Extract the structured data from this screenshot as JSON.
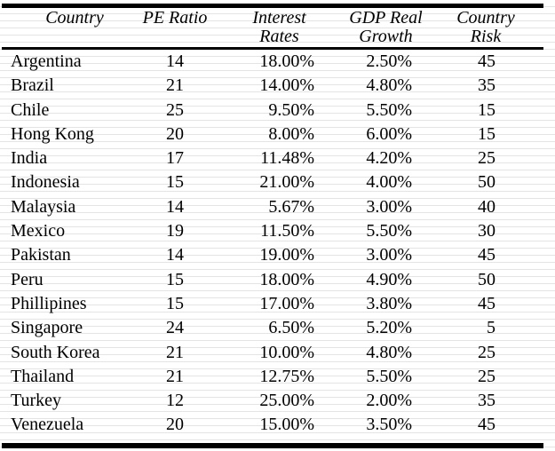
{
  "chart_data": {
    "type": "table",
    "title": "",
    "columns": [
      "Country",
      "PE Ratio",
      "Interest Rates",
      "GDP Real Growth",
      "Country Risk"
    ],
    "header_lines": [
      [
        "Country"
      ],
      [
        "PE Ratio"
      ],
      [
        "Interest",
        "Rates"
      ],
      [
        "GDP Real",
        "Growth"
      ],
      [
        "Country",
        "Risk"
      ]
    ],
    "rows": [
      [
        "Argentina",
        "14",
        "18.00%",
        "2.50%",
        "45"
      ],
      [
        "Brazil",
        "21",
        "14.00%",
        "4.80%",
        "35"
      ],
      [
        "Chile",
        "25",
        "9.50%",
        "5.50%",
        "15"
      ],
      [
        "Hong Kong",
        "20",
        "8.00%",
        "6.00%",
        "15"
      ],
      [
        "India",
        "17",
        "11.48%",
        "4.20%",
        "25"
      ],
      [
        "Indonesia",
        "15",
        "21.00%",
        "4.00%",
        "50"
      ],
      [
        "Malaysia",
        "14",
        "5.67%",
        "3.00%",
        "40"
      ],
      [
        "Mexico",
        "19",
        "11.50%",
        "5.50%",
        "30"
      ],
      [
        "Pakistan",
        "14",
        "19.00%",
        "3.00%",
        "45"
      ],
      [
        "Peru",
        "15",
        "18.00%",
        "4.90%",
        "50"
      ],
      [
        "Phillipines",
        "15",
        "17.00%",
        "3.80%",
        "45"
      ],
      [
        "Singapore",
        "24",
        "6.50%",
        "5.20%",
        "5"
      ],
      [
        "South Korea",
        "21",
        "10.00%",
        "4.80%",
        "25"
      ],
      [
        "Thailand",
        "21",
        "12.75%",
        "5.50%",
        "25"
      ],
      [
        "Turkey",
        "12",
        "25.00%",
        "2.00%",
        "35"
      ],
      [
        "Venezuela",
        "20",
        "15.00%",
        "3.50%",
        "45"
      ]
    ],
    "layout": {
      "column_alignments": [
        "left",
        "center",
        "right",
        "right",
        "right"
      ],
      "grid": "horizontal-rules-only",
      "background_stripes": true
    },
    "colors": {
      "text": "#000000",
      "rule": "#000000",
      "background": "#ffffff",
      "stripe": "#e4e4e4"
    }
  }
}
